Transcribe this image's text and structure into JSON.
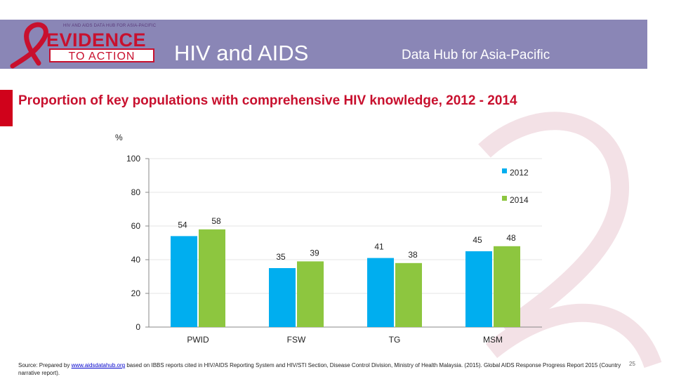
{
  "header": {
    "logo_top": "HIV AND AIDS DATA HUB FOR ASIA-PACIFIC",
    "logo_main": "EVIDENCE",
    "logo_sub": "TO ACTION",
    "title": "HIV and AIDS",
    "subtitle": "Data Hub for Asia-Pacific"
  },
  "colors": {
    "banner": "#8a86b6",
    "accent": "#c8102e",
    "series_2012": "#00aeef",
    "series_2014": "#8dc63f"
  },
  "chart_data": {
    "type": "bar",
    "title": "Proportion of key populations with comprehensive HIV knowledge, 2012 - 2014",
    "ylabel": "%",
    "xlabel": "",
    "ylim": [
      0,
      100
    ],
    "yticks": [
      "0",
      "20",
      "40",
      "60",
      "80",
      "100"
    ],
    "categories": [
      "PWID",
      "FSW",
      "TG",
      "MSM"
    ],
    "series": [
      {
        "name": "2012",
        "values": [
          54,
          35,
          41,
          45
        ]
      },
      {
        "name": "2014",
        "values": [
          58,
          39,
          38,
          48
        ]
      }
    ],
    "legend": "top-right"
  },
  "footer": {
    "source_prefix": "Source: Prepared by ",
    "source_link": "www.aidsdatahub.org",
    "source_rest": " based on IBBS reports cited in HIV/AIDS Reporting System and HIV/STI Section, Disease Control Division, Ministry of Health Malaysia. (2015). Global AIDS Response Progress Report 2015 (Country narrative report).",
    "page_number": "25"
  }
}
